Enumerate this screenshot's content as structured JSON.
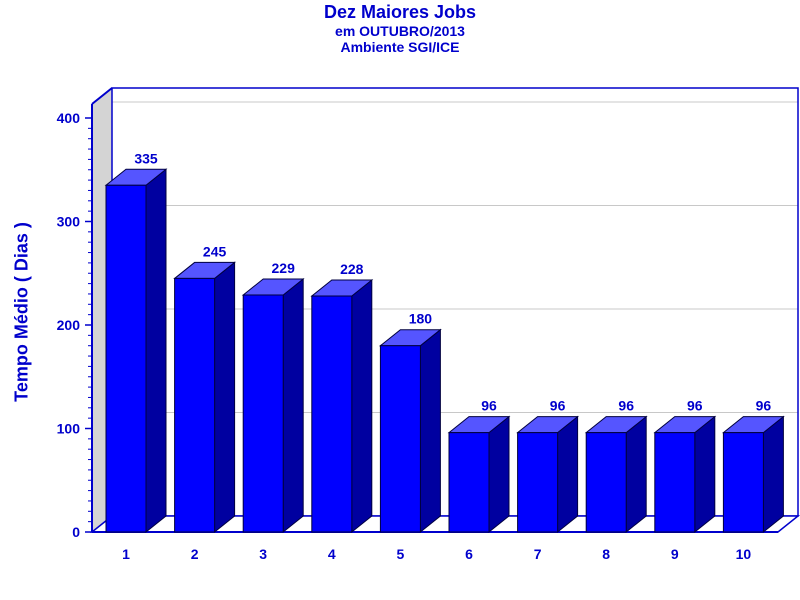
{
  "chart_data": {
    "type": "bar",
    "title": "Dez Maiores Jobs",
    "subtitle_1": "em OUTUBRO/2013",
    "subtitle_2": "Ambiente SGI/ICE",
    "ylabel": "Tempo Médio ( Dias )",
    "xlabel": "",
    "categories": [
      "1",
      "2",
      "3",
      "4",
      "5",
      "6",
      "7",
      "8",
      "9",
      "10"
    ],
    "values": [
      335,
      245,
      229,
      228,
      180,
      96,
      96,
      96,
      96,
      96
    ],
    "ylim": [
      0,
      400
    ],
    "yticks": [
      0,
      100,
      200,
      300,
      400
    ],
    "grid": true,
    "legend": "none",
    "colors": {
      "bar_front": "#0000ff",
      "bar_top": "#5555ff",
      "bar_side": "#0000a0",
      "axis": "#0000cc",
      "text": "#0000cc",
      "side_wall": "#d4d4d4",
      "grid": "#c8c8c8"
    }
  }
}
